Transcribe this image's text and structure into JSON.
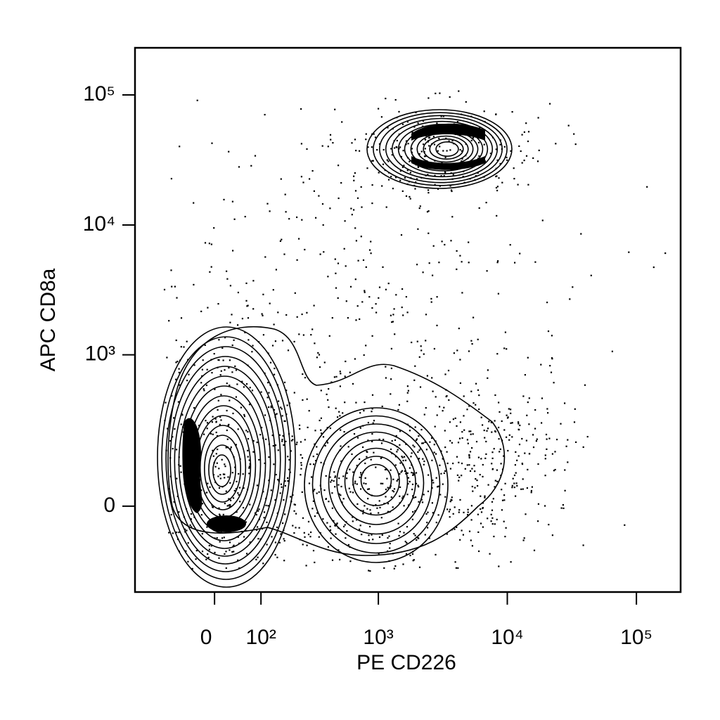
{
  "chart_data": {
    "type": "contour",
    "xlabel": "PE CD226",
    "ylabel": "APC CD8a",
    "xscale": "biexponential",
    "yscale": "biexponential",
    "xlim": [
      -210,
      220000
    ],
    "ylim": [
      -300,
      230000
    ],
    "xticks": [
      0,
      {
        "value": 100,
        "label": "10²"
      },
      {
        "value": 1000,
        "label": "10³"
      },
      {
        "value": 10000,
        "label": "10⁴"
      },
      {
        "value": 100000,
        "label": "10⁵"
      }
    ],
    "yticks": [
      0,
      {
        "value": 1000,
        "label": "10³"
      },
      {
        "value": 10000,
        "label": "10⁴"
      },
      {
        "value": 100000,
        "label": "10⁵"
      }
    ],
    "color": "#000000"
  }
}
